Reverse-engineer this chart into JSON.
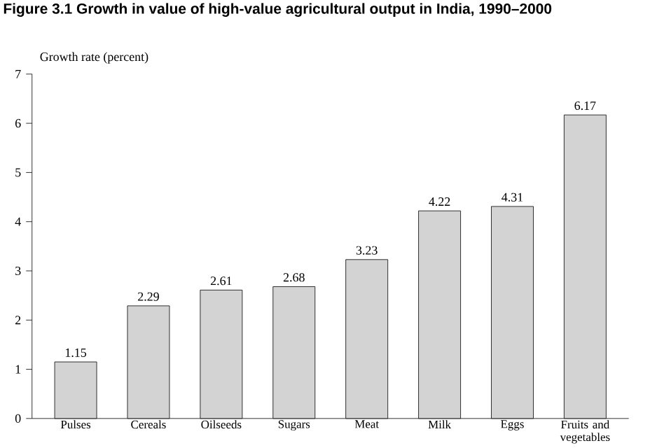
{
  "chart_data": {
    "type": "bar",
    "title": "Figure 3.1  Growth in value of high-value agricultural output in India, 1990–2000",
    "ylabel": "Growth rate (percent)",
    "categories": [
      "Pulses",
      "Cereals",
      "Oilseeds",
      "Sugars",
      "Meat",
      "Milk",
      "Eggs",
      "Fruits and vegetables"
    ],
    "values": [
      1.15,
      2.29,
      2.61,
      2.68,
      3.23,
      4.22,
      4.31,
      6.17
    ],
    "color": "#d3d3d3",
    "ylim": [
      0,
      7
    ],
    "yticks": [
      0,
      1,
      2,
      3,
      4,
      5,
      6,
      7
    ],
    "data_labels": true,
    "grid": false
  }
}
